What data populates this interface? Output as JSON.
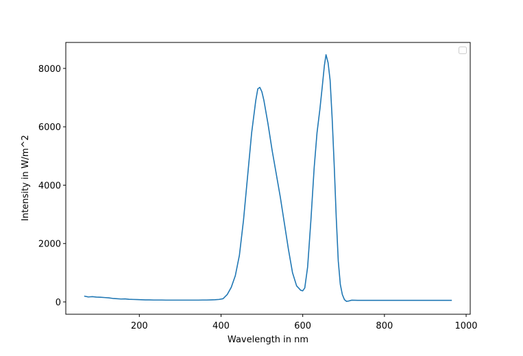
{
  "chart_data": {
    "type": "line",
    "xlabel": "Wavelength in nm",
    "ylabel": "Intensity in W/m^2",
    "x": [
      65,
      75,
      85,
      95,
      105,
      115,
      125,
      135,
      145,
      155,
      165,
      175,
      185,
      195,
      205,
      215,
      225,
      235,
      245,
      255,
      265,
      275,
      285,
      295,
      305,
      315,
      325,
      335,
      345,
      355,
      365,
      375,
      385,
      395,
      405,
      415,
      425,
      435,
      445,
      455,
      465,
      475,
      485,
      490,
      495,
      500,
      505,
      515,
      525,
      535,
      545,
      555,
      565,
      575,
      585,
      595,
      600,
      605,
      612,
      620,
      628,
      635,
      642,
      648,
      653,
      657,
      662,
      667,
      672,
      677,
      682,
      687,
      692,
      697,
      702,
      707,
      712,
      720,
      735,
      745,
      755,
      765,
      775,
      785,
      795,
      805,
      815,
      825,
      835,
      845,
      855,
      865,
      875,
      885,
      895,
      905,
      915,
      925,
      935,
      945,
      955,
      965
    ],
    "series": [
      {
        "color": "#1f77b4",
        "values": [
          200,
          170,
          180,
          165,
          160,
          150,
          140,
          120,
          110,
          100,
          105,
          90,
          85,
          80,
          75,
          70,
          70,
          65,
          65,
          65,
          62,
          62,
          62,
          62,
          62,
          62,
          62,
          62,
          62,
          65,
          65,
          70,
          75,
          85,
          110,
          250,
          500,
          900,
          1600,
          2800,
          4300,
          5800,
          6900,
          7300,
          7350,
          7200,
          6900,
          6100,
          5200,
          4400,
          3600,
          2700,
          1800,
          1000,
          550,
          400,
          380,
          480,
          1200,
          2800,
          4600,
          5800,
          6600,
          7400,
          8100,
          8470,
          8200,
          7600,
          6300,
          4700,
          2900,
          1400,
          600,
          250,
          80,
          20,
          30,
          60,
          55,
          55,
          55,
          55,
          55,
          55,
          55,
          55,
          55,
          55,
          55,
          55,
          55,
          55,
          55,
          55,
          55,
          55,
          55,
          55,
          55,
          55,
          55,
          55
        ]
      }
    ],
    "xlim": [
      20,
      1010
    ],
    "ylim": [
      -422,
      8890
    ],
    "xticks": [
      200,
      400,
      600,
      800,
      1000
    ],
    "yticks": [
      0,
      2000,
      4000,
      6000,
      8000
    ]
  }
}
